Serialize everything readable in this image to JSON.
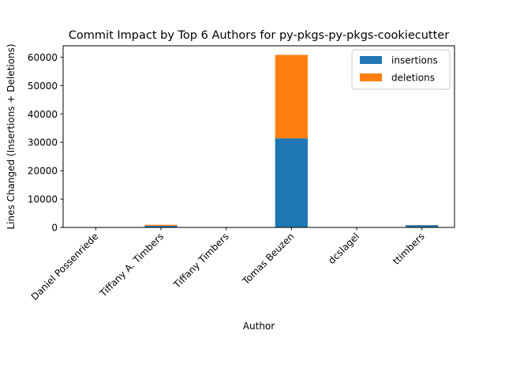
{
  "chart_data": {
    "type": "bar",
    "stacked": true,
    "title": "Commit Impact by Top 6 Authors for py-pkgs-py-pkgs-cookiecutter",
    "xlabel": "Author",
    "ylabel": "Lines Changed (Insertions + Deletions)",
    "categories": [
      "Daniel Possenriede",
      "Tiffany A. Timbers",
      "Tiffany Timbers",
      "Tomas Beuzen",
      "dcslagel",
      "ttimbers"
    ],
    "series": [
      {
        "name": "insertions",
        "color": "#1f77b4",
        "values": [
          20,
          600,
          10,
          31400,
          10,
          800
        ]
      },
      {
        "name": "deletions",
        "color": "#ff7f0e",
        "values": [
          10,
          350,
          5,
          29400,
          5,
          60
        ]
      }
    ],
    "ylim": [
      0,
      64000
    ],
    "yticks": [
      0,
      10000,
      20000,
      30000,
      40000,
      50000,
      60000
    ],
    "legend_position": "top-right",
    "grid": false
  }
}
